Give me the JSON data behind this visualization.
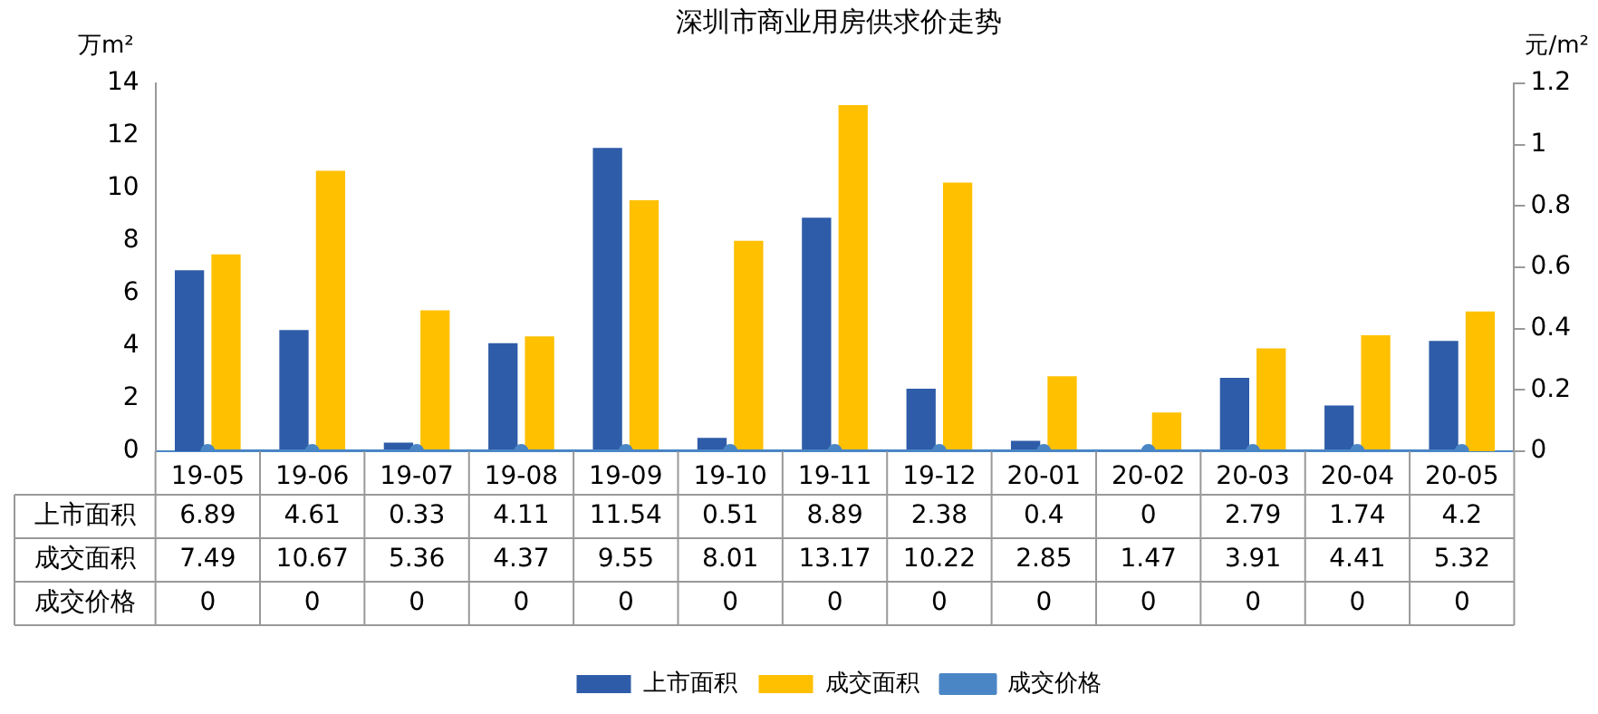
{
  "chart_data": {
    "type": "bar",
    "title": "深圳市商业用房供求价走势",
    "ylabel": "万m²",
    "y2label": "元/m²",
    "categories": [
      "19-05",
      "19-06",
      "19-07",
      "19-08",
      "19-09",
      "19-10",
      "19-11",
      "19-12",
      "20-01",
      "20-02",
      "20-03",
      "20-04",
      "20-05"
    ],
    "series": [
      {
        "name": "上市面积",
        "color": "#2e5ca8",
        "values": [
          6.89,
          4.61,
          0.33,
          4.11,
          11.54,
          0.51,
          8.89,
          2.38,
          0.4,
          0,
          2.79,
          1.74,
          4.2
        ]
      },
      {
        "name": "成交面积",
        "color": "#ffc000",
        "values": [
          7.49,
          10.67,
          5.36,
          4.37,
          9.55,
          8.01,
          13.17,
          10.22,
          2.85,
          1.47,
          3.91,
          4.41,
          5.32
        ]
      },
      {
        "name": "成交价格",
        "type": "line",
        "axis": "y2",
        "color": "#4a86c5",
        "marker": "circle",
        "values": [
          0,
          0,
          0,
          0,
          0,
          0,
          0,
          0,
          0,
          0,
          0,
          0,
          0
        ]
      }
    ],
    "ylim": [
      0,
      14
    ],
    "yticks": [
      0,
      2,
      4,
      6,
      8,
      10,
      12,
      14
    ],
    "y2lim": [
      0,
      1.2
    ],
    "y2ticks": [
      0,
      0.2,
      0.4,
      0.6,
      0.8,
      1,
      1.2
    ],
    "data_labels": true,
    "grid": false,
    "legend": "bottom"
  }
}
